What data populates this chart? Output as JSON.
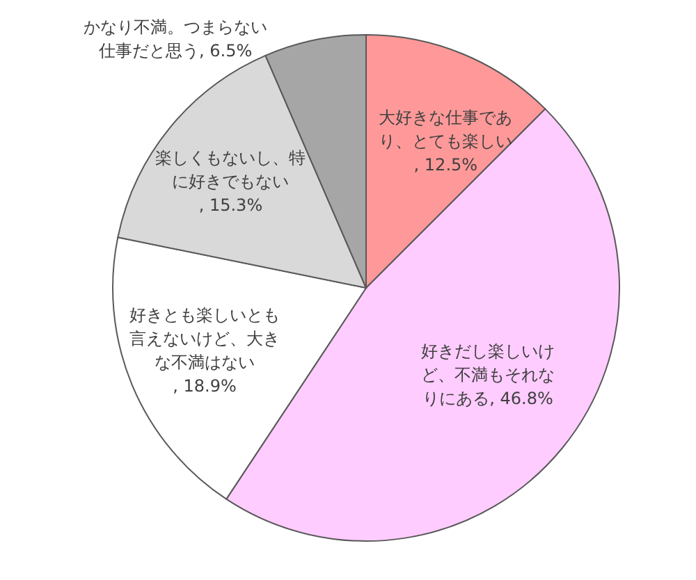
{
  "chart_data": {
    "type": "pie",
    "categories": [
      "大好きな仕事であり、とても楽しい",
      "好きだし楽しいけど、不満もそれなりにある",
      "好きとも楽しいとも言えないけど、大きな不満はない",
      "楽しくもないし、特に好きでもない",
      "かなり不満。つまらない仕事だと思う"
    ],
    "values": [
      12.5,
      46.8,
      18.9,
      15.3,
      6.5
    ],
    "value_labels": [
      ", 12.5%",
      ", 46.8%",
      ", 18.9%",
      ", 15.3%",
      ", 6.5%"
    ],
    "colors": [
      "#ff9999",
      "#ffccff",
      "#ffffff",
      "#d9d9d9",
      "#a6a6a6"
    ]
  }
}
